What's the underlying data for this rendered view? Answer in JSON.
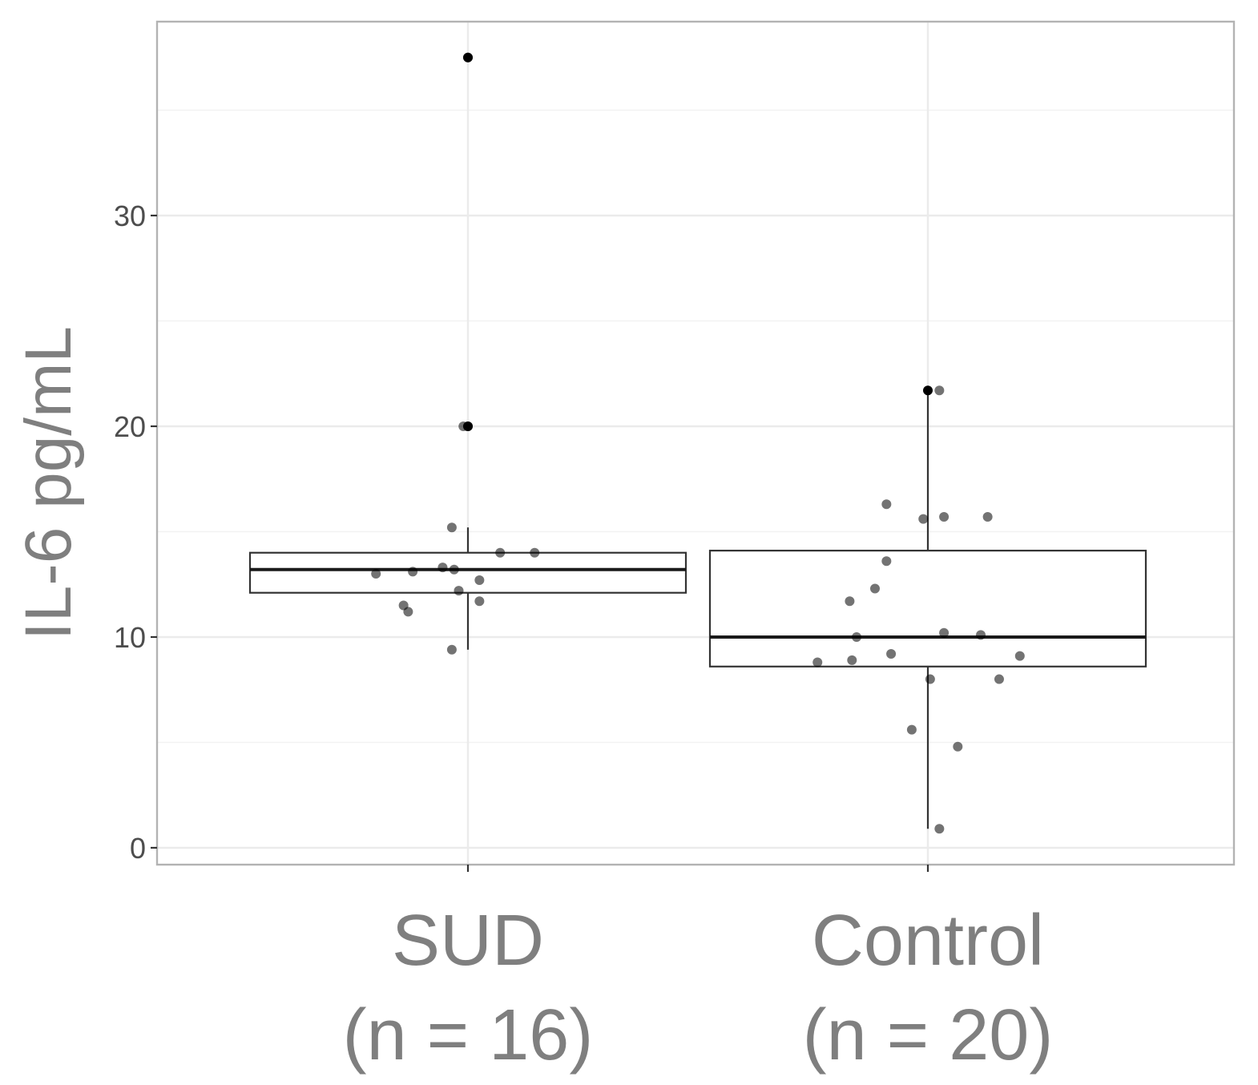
{
  "chart_data": {
    "type": "boxplot",
    "title": "",
    "ylabel": "IL-6 pg/mL",
    "xlabel": "",
    "ylim": [
      -0.8,
      39.2
    ],
    "yticks": [
      0,
      10,
      20,
      30
    ],
    "grid": true,
    "categories": [
      {
        "line1": "SUD",
        "line2": "(n = 16)"
      },
      {
        "line1": "Control",
        "line2": "(n = 20)"
      }
    ],
    "boxes": [
      {
        "q1": 12.1,
        "median": 13.2,
        "q3": 14.0,
        "whisker_low": 9.4,
        "whisker_high": 15.2
      },
      {
        "q1": 8.6,
        "median": 10.0,
        "q3": 14.1,
        "whisker_low": 0.9,
        "whisker_high": 21.7
      }
    ],
    "outliers": [
      {
        "group": 0,
        "y": 37.5
      },
      {
        "group": 0,
        "y": 20.0
      },
      {
        "group": 1,
        "y": 21.7
      }
    ],
    "points": [
      {
        "group": 0,
        "jitter": -0.2,
        "y": 13.0
      },
      {
        "group": 0,
        "jitter": -0.12,
        "y": 13.1
      },
      {
        "group": 0,
        "jitter": -0.055,
        "y": 13.3
      },
      {
        "group": 0,
        "jitter": -0.03,
        "y": 13.2
      },
      {
        "group": 0,
        "jitter": 0.025,
        "y": 12.7
      },
      {
        "group": 0,
        "jitter": -0.02,
        "y": 12.2
      },
      {
        "group": 0,
        "jitter": 0.025,
        "y": 11.7
      },
      {
        "group": 0,
        "jitter": -0.14,
        "y": 11.5
      },
      {
        "group": 0,
        "jitter": -0.13,
        "y": 11.2
      },
      {
        "group": 0,
        "jitter": -0.035,
        "y": 9.4
      },
      {
        "group": 0,
        "jitter": 0.07,
        "y": 14.0
      },
      {
        "group": 0,
        "jitter": 0.145,
        "y": 14.0
      },
      {
        "group": 0,
        "jitter": -0.035,
        "y": 15.2
      },
      {
        "group": 0,
        "jitter": -0.01,
        "y": 20.0
      },
      {
        "group": 0,
        "jitter": 0.0,
        "y": 20.0
      },
      {
        "group": 0,
        "jitter": 0.0,
        "y": 37.5
      },
      {
        "group": 1,
        "jitter": 0.025,
        "y": 21.7
      },
      {
        "group": 1,
        "jitter": -0.09,
        "y": 16.3
      },
      {
        "group": 1,
        "jitter": -0.01,
        "y": 15.6
      },
      {
        "group": 1,
        "jitter": 0.035,
        "y": 15.7
      },
      {
        "group": 1,
        "jitter": 0.13,
        "y": 15.7
      },
      {
        "group": 1,
        "jitter": -0.09,
        "y": 13.6
      },
      {
        "group": 1,
        "jitter": -0.115,
        "y": 12.3
      },
      {
        "group": 1,
        "jitter": -0.17,
        "y": 11.7
      },
      {
        "group": 1,
        "jitter": -0.155,
        "y": 10.0
      },
      {
        "group": 1,
        "jitter": 0.035,
        "y": 10.2
      },
      {
        "group": 1,
        "jitter": 0.115,
        "y": 10.1
      },
      {
        "group": 1,
        "jitter": -0.24,
        "y": 8.8
      },
      {
        "group": 1,
        "jitter": -0.165,
        "y": 8.9
      },
      {
        "group": 1,
        "jitter": -0.08,
        "y": 9.2
      },
      {
        "group": 1,
        "jitter": 0.2,
        "y": 9.1
      },
      {
        "group": 1,
        "jitter": 0.005,
        "y": 8.0
      },
      {
        "group": 1,
        "jitter": 0.155,
        "y": 8.0
      },
      {
        "group": 1,
        "jitter": -0.035,
        "y": 5.6
      },
      {
        "group": 1,
        "jitter": 0.065,
        "y": 4.8
      },
      {
        "group": 1,
        "jitter": 0.025,
        "y": 0.9
      }
    ]
  }
}
